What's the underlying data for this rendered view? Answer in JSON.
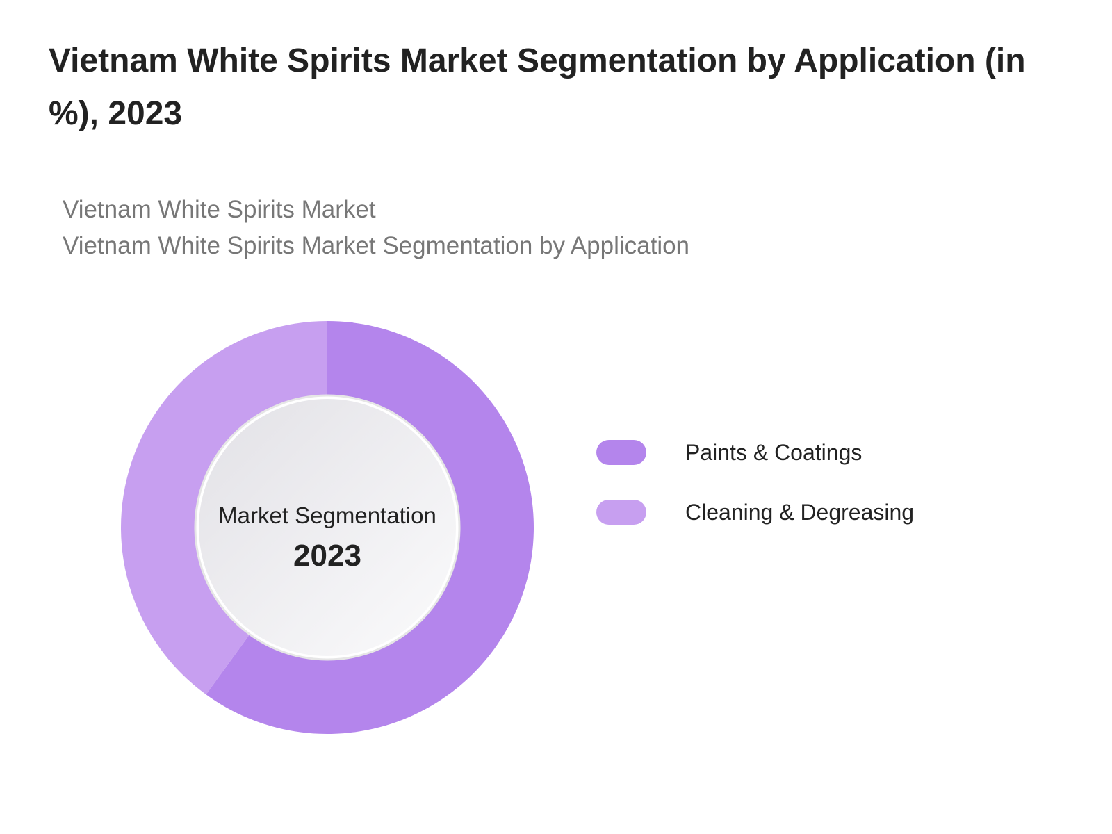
{
  "chart_data": {
    "type": "donut",
    "title": "Vietnam White Spirits Market Segmentation by Application (in %), 2023",
    "subtitles": [
      "Vietnam White Spirits Market",
      "Vietnam White Spirits Market Segmentation by Application"
    ],
    "categories": [
      "Paints & Coatings",
      "Cleaning & Degreasing"
    ],
    "values": [
      60,
      40
    ],
    "colors": [
      "#b485ec",
      "#c79ff0"
    ],
    "center_label": "Market Segmentation",
    "center_value": "2023"
  }
}
